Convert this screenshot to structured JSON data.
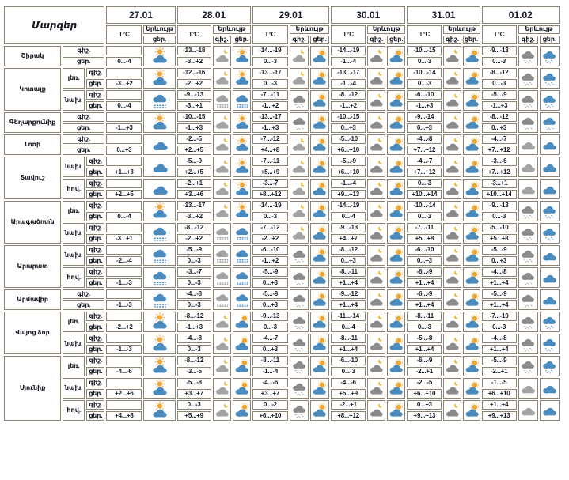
{
  "table": {
    "regions_label": "Մարզեր",
    "temp_label": "T°C",
    "phenomenon_label": "Երևույթ",
    "night_label": "գիշ.",
    "day_label": "ցեր.",
    "dates": [
      "27.01",
      "28.01",
      "29.01",
      "30.01",
      "31.01",
      "01.02"
    ],
    "colors": {
      "border": "#8e8476",
      "text": "#191923",
      "cloud_blue": "#4a8bbf",
      "cloud_gray": "#a3a3a3",
      "cloud_dark_gray": "#8b8b8b",
      "sun_orange": "#f0a432",
      "moon_yellow": "#edbd3c"
    },
    "icon_legend": {
      "sun-cloud": "sun-over-cloud-icon",
      "cloud-sun": "sun-behind-cloud-icon",
      "moon-cloud": "moon-cloud-icon",
      "moon-cloud-dark": "moon-dark-cloud-icon",
      "cloud-blue": "cloud-icon",
      "cloud-gray": "gray-cloud-icon",
      "snow-gray": "snow-gray-cloud-icon",
      "snow-blue": "snow-blue-cloud-icon",
      "fog-gray": "fog-gray-cloud-icon",
      "fog-blue": "fog-blue-cloud-icon"
    },
    "regions": [
      {
        "name": "Շիրակ",
        "zones": [
          {
            "label": "",
            "days": [
              {
                "d": "0...-4",
                "di": "sun-cloud"
              },
              {
                "n": "-13...-18",
                "d": "-3...+2",
                "ni": "moon-cloud",
                "di": "sun-cloud"
              },
              {
                "n": "-14...-19",
                "d": "0...-3",
                "ni": "moon-cloud",
                "di": "cloud-sun"
              },
              {
                "n": "-14...-19",
                "d": "-1...-4",
                "ni": "moon-cloud-dark",
                "di": "cloud-sun"
              },
              {
                "n": "-10...-15",
                "d": "0...-3",
                "ni": "moon-cloud-dark",
                "di": "cloud-sun"
              },
              {
                "n": "-9...-13",
                "d": "0...-3",
                "ni": "snow-gray",
                "di": "snow-blue"
              }
            ]
          }
        ]
      },
      {
        "name": "Կոտայք",
        "zones": [
          {
            "label": "լեռ.",
            "days": [
              {
                "d": "-3...+2",
                "di": "sun-cloud"
              },
              {
                "n": "-12...-16",
                "d": "-2...+2",
                "ni": "moon-cloud",
                "di": "sun-cloud"
              },
              {
                "n": "-13...-17",
                "d": "0...-3",
                "ni": "moon-cloud",
                "di": "cloud-sun"
              },
              {
                "n": "-13...-17",
                "d": "-1...-4",
                "ni": "moon-cloud-dark",
                "di": "cloud-sun"
              },
              {
                "n": "-10...-14",
                "d": "0...-3",
                "ni": "moon-cloud-dark",
                "di": "cloud-sun"
              },
              {
                "n": "-8...-12",
                "d": "0...-3",
                "ni": "snow-gray",
                "di": "snow-blue"
              }
            ]
          },
          {
            "label": "նախ.",
            "days": [
              {
                "d": "0...-4",
                "di": "fog-blue"
              },
              {
                "n": "-9...-13",
                "d": "-3...+1",
                "ni": "fog-gray",
                "di": "fog-blue"
              },
              {
                "n": "-7...-11",
                "d": "-1...+2",
                "ni": "snow-gray",
                "di": "cloud-sun"
              },
              {
                "n": "-8...-12",
                "d": "-1...+2",
                "ni": "moon-cloud-dark",
                "di": "cloud-sun"
              },
              {
                "n": "-6...-10",
                "d": "-1...+3",
                "ni": "moon-cloud-dark",
                "di": "cloud-sun"
              },
              {
                "n": "-5...-9",
                "d": "-1...+3",
                "ni": "snow-gray",
                "di": "snow-blue"
              }
            ]
          }
        ]
      },
      {
        "name": "Գեղարքունիք",
        "zones": [
          {
            "label": "",
            "days": [
              {
                "d": "-1...+3",
                "di": "sun-cloud"
              },
              {
                "n": "-10...-15",
                "d": "-1...+3",
                "ni": "moon-cloud",
                "di": "sun-cloud"
              },
              {
                "n": "-13...-17",
                "d": "-1...+3",
                "ni": "snow-gray",
                "di": "cloud-sun"
              },
              {
                "n": "-10...-15",
                "d": "0...+3",
                "ni": "moon-cloud-dark",
                "di": "cloud-sun"
              },
              {
                "n": "-9...-14",
                "d": "0...+3",
                "ni": "moon-cloud-dark",
                "di": "cloud-sun"
              },
              {
                "n": "-8...-12",
                "d": "0...+3",
                "ni": "snow-gray",
                "di": "snow-blue"
              }
            ]
          }
        ]
      },
      {
        "name": "Լոռի",
        "zones": [
          {
            "label": "",
            "days": [
              {
                "d": "0...+3",
                "di": "cloud-blue"
              },
              {
                "n": "-2...-5",
                "d": "+2...+5",
                "ni": "moon-cloud",
                "di": "sun-cloud"
              },
              {
                "n": "-7...-12",
                "d": "+4...+8",
                "ni": "moon-cloud",
                "di": "cloud-sun"
              },
              {
                "n": "-5...-10",
                "d": "+6...+10",
                "ni": "moon-cloud-dark",
                "di": "cloud-sun"
              },
              {
                "n": "-4...-8",
                "d": "+7...+12",
                "ni": "moon-cloud-dark",
                "di": "cloud-sun"
              },
              {
                "n": "-4...-7",
                "d": "+7...+12",
                "ni": "cloud-gray",
                "di": "cloud-blue"
              }
            ]
          }
        ]
      },
      {
        "name": "Տավուշ",
        "zones": [
          {
            "label": "նախ.",
            "days": [
              {
                "d": "+1...+3",
                "di": "cloud-blue"
              },
              {
                "n": "-5...-9",
                "d": "+2...+5",
                "ni": "moon-cloud",
                "di": "sun-cloud"
              },
              {
                "n": "-7...-11",
                "d": "+5...+9",
                "ni": "moon-cloud",
                "di": "cloud-sun"
              },
              {
                "n": "-5...-9",
                "d": "+6...+10",
                "ni": "moon-cloud-dark",
                "di": "cloud-sun"
              },
              {
                "n": "-4...-7",
                "d": "+7...+12",
                "ni": "moon-cloud-dark",
                "di": "cloud-sun"
              },
              {
                "n": "-3...-6",
                "d": "+7...+12",
                "ni": "cloud-gray",
                "di": "cloud-blue"
              }
            ]
          },
          {
            "label": "հով.",
            "days": [
              {
                "d": "+2...+5",
                "di": "cloud-blue"
              },
              {
                "n": "-2...+1",
                "d": "+3...+6",
                "ni": "moon-cloud",
                "di": "sun-cloud"
              },
              {
                "n": "-3...-7",
                "d": "+8...+12",
                "ni": "moon-cloud",
                "di": "cloud-sun"
              },
              {
                "n": "-1...-4",
                "d": "+9...+13",
                "ni": "moon-cloud-dark",
                "di": "cloud-sun"
              },
              {
                "n": "0...-3",
                "d": "+10...+14",
                "ni": "moon-cloud-dark",
                "di": "cloud-sun"
              },
              {
                "n": "-3...+1",
                "d": "+10...+14",
                "ni": "cloud-gray",
                "di": "cloud-blue"
              }
            ]
          }
        ]
      },
      {
        "name": "Արագածոտն",
        "zones": [
          {
            "label": "լեռ.",
            "days": [
              {
                "d": "0...-4",
                "di": "sun-cloud"
              },
              {
                "n": "-13...-17",
                "d": "-3...+2",
                "ni": "moon-cloud",
                "di": "sun-cloud"
              },
              {
                "n": "-14...-19",
                "d": "0...-3",
                "ni": "moon-cloud",
                "di": "cloud-sun"
              },
              {
                "n": "-14...-19",
                "d": "0...-4",
                "ni": "moon-cloud-dark",
                "di": "cloud-sun"
              },
              {
                "n": "-10...-14",
                "d": "0...-3",
                "ni": "moon-cloud-dark",
                "di": "cloud-sun"
              },
              {
                "n": "-9...-13",
                "d": "0...-3",
                "ni": "snow-gray",
                "di": "snow-blue"
              }
            ]
          },
          {
            "label": "նախ.",
            "days": [
              {
                "d": "-3...+1",
                "di": "fog-blue"
              },
              {
                "n": "-8...-12",
                "d": "-2...+2",
                "ni": "fog-gray",
                "di": "fog-blue"
              },
              {
                "n": "-7...-12",
                "d": "-2...+2",
                "ni": "moon-cloud",
                "di": "cloud-sun"
              },
              {
                "n": "-9...-13",
                "d": "+4...+7",
                "ni": "moon-cloud-dark",
                "di": "cloud-sun"
              },
              {
                "n": "-7...-11",
                "d": "+5...+8",
                "ni": "moon-cloud-dark",
                "di": "cloud-sun"
              },
              {
                "n": "-5...-10",
                "d": "+5...+8",
                "ni": "snow-gray",
                "di": "snow-blue"
              }
            ]
          }
        ]
      },
      {
        "name": "Արարատ",
        "zones": [
          {
            "label": "նախ.",
            "days": [
              {
                "d": "-2...-4",
                "di": "fog-blue"
              },
              {
                "n": "-5...-9",
                "d": "0...-3",
                "ni": "fog-gray",
                "di": "fog-blue"
              },
              {
                "n": "-6...-10",
                "d": "-1...+2",
                "ni": "snow-gray",
                "di": "cloud-sun"
              },
              {
                "n": "-8...-12",
                "d": "0...+3",
                "ni": "moon-cloud-dark",
                "di": "cloud-sun"
              },
              {
                "n": "-6...-10",
                "d": "0...+3",
                "ni": "moon-cloud-dark",
                "di": "cloud-sun"
              },
              {
                "n": "-5...-9",
                "d": "0...+3",
                "ni": "snow-gray",
                "di": "cloud-blue"
              }
            ]
          },
          {
            "label": "հով.",
            "days": [
              {
                "d": "-1...-3",
                "di": "fog-blue"
              },
              {
                "n": "-3...-7",
                "d": "0...-3",
                "ni": "fog-gray",
                "di": "fog-blue"
              },
              {
                "n": "-5...-9",
                "d": "0...+3",
                "ni": "snow-gray",
                "di": "cloud-sun"
              },
              {
                "n": "-8...-11",
                "d": "+1...+4",
                "ni": "moon-cloud-dark",
                "di": "cloud-sun"
              },
              {
                "n": "-6...-9",
                "d": "+1...+4",
                "ni": "moon-cloud-dark",
                "di": "cloud-sun"
              },
              {
                "n": "-4...-8",
                "d": "+1...+4",
                "ni": "snow-gray",
                "di": "cloud-blue"
              }
            ]
          }
        ]
      },
      {
        "name": "Արմավիր",
        "zones": [
          {
            "label": "",
            "days": [
              {
                "d": "-1...-3",
                "di": "fog-blue"
              },
              {
                "n": "-4...-8",
                "d": "0...-3",
                "ni": "fog-gray",
                "di": "fog-blue"
              },
              {
                "n": "-5...-9",
                "d": "0...+3",
                "ni": "snow-gray",
                "di": "cloud-sun"
              },
              {
                "n": "-9...-12",
                "d": "+1...+4",
                "ni": "moon-cloud-dark",
                "di": "cloud-sun"
              },
              {
                "n": "-6...-9",
                "d": "+1...+4",
                "ni": "moon-cloud-dark",
                "di": "cloud-sun"
              },
              {
                "n": "-5...-9",
                "d": "+1...+4",
                "ni": "snow-gray",
                "di": "cloud-blue"
              }
            ]
          }
        ]
      },
      {
        "name": "Վայոց ձոր",
        "zones": [
          {
            "label": "լեռ.",
            "days": [
              {
                "d": "-2...+2",
                "di": "sun-cloud"
              },
              {
                "n": "-8...-12",
                "d": "-1...+3",
                "ni": "moon-cloud",
                "di": "cloud-sun"
              },
              {
                "n": "-9...-13",
                "d": "0...-3",
                "ni": "snow-gray",
                "di": "cloud-sun"
              },
              {
                "n": "-11...-14",
                "d": "0...-4",
                "ni": "moon-cloud-dark",
                "di": "cloud-sun"
              },
              {
                "n": "-8...-11",
                "d": "0...-3",
                "ni": "moon-cloud-dark",
                "di": "cloud-sun"
              },
              {
                "n": "-7...-10",
                "d": "0...-3",
                "ni": "snow-gray",
                "di": "snow-blue"
              }
            ]
          },
          {
            "label": "նախ.",
            "days": [
              {
                "d": "-1...-3",
                "di": "sun-cloud"
              },
              {
                "n": "-4...-8",
                "d": "0...-3",
                "ni": "moon-cloud",
                "di": "cloud-sun"
              },
              {
                "n": "-4...-7",
                "d": "0...+3",
                "ni": "snow-gray",
                "di": "cloud-sun"
              },
              {
                "n": "-8...-11",
                "d": "+1...+4",
                "ni": "moon-cloud-dark",
                "di": "cloud-sun"
              },
              {
                "n": "-5...-8",
                "d": "+1...+4",
                "ni": "moon-cloud-dark",
                "di": "cloud-sun"
              },
              {
                "n": "-4...-8",
                "d": "+1...+4",
                "ni": "snow-gray",
                "di": "snow-blue"
              }
            ]
          }
        ]
      },
      {
        "name": "Սյունիք",
        "zones": [
          {
            "label": "լեռ.",
            "days": [
              {
                "d": "-4...-6",
                "di": "sun-cloud"
              },
              {
                "n": "-8...-12",
                "d": "-3...-5",
                "ni": "moon-cloud",
                "di": "cloud-sun"
              },
              {
                "n": "-8...-11",
                "d": "-1...-4",
                "ni": "snow-gray",
                "di": "cloud-sun"
              },
              {
                "n": "-6...-10",
                "d": "0...-3",
                "ni": "moon-cloud-dark",
                "di": "cloud-sun"
              },
              {
                "n": "-6...-9",
                "d": "-2...+1",
                "ni": "moon-cloud-dark",
                "di": "cloud-sun"
              },
              {
                "n": "-5...-9",
                "d": "-2...+1",
                "ni": "snow-gray",
                "di": "snow-blue"
              }
            ]
          },
          {
            "label": "նախ.",
            "days": [
              {
                "d": "+2...+6",
                "di": "sun-cloud"
              },
              {
                "n": "-5...-8",
                "d": "+3...+7",
                "ni": "moon-cloud",
                "di": "cloud-sun"
              },
              {
                "n": "-4...-6",
                "d": "+3...+7",
                "ni": "snow-gray",
                "di": "cloud-sun"
              },
              {
                "n": "-4...-6",
                "d": "+5...+9",
                "ni": "moon-cloud-dark",
                "di": "cloud-sun"
              },
              {
                "n": "-2...-5",
                "d": "+6...+10",
                "ni": "moon-cloud-dark",
                "di": "cloud-sun"
              },
              {
                "n": "-1...-5",
                "d": "+6...+10",
                "ni": "cloud-gray",
                "di": "cloud-blue"
              }
            ]
          },
          {
            "label": "հով.",
            "days": [
              {
                "d": "+4...+8",
                "di": "sun-cloud"
              },
              {
                "n": "0...-3",
                "d": "+5...+9",
                "ni": "moon-cloud",
                "di": "cloud-sun"
              },
              {
                "n": "0...-2",
                "d": "+6...+10",
                "ni": "snow-gray",
                "di": "cloud-sun"
              },
              {
                "n": "-2...+1",
                "d": "+8...+12",
                "ni": "moon-cloud-dark",
                "di": "cloud-sun"
              },
              {
                "n": "0...+3",
                "d": "+9...+13",
                "ni": "moon-cloud-dark",
                "di": "cloud-sun"
              },
              {
                "n": "+1...+4",
                "d": "+9...+13",
                "ni": "cloud-gray",
                "di": "cloud-blue"
              }
            ]
          }
        ]
      }
    ]
  }
}
